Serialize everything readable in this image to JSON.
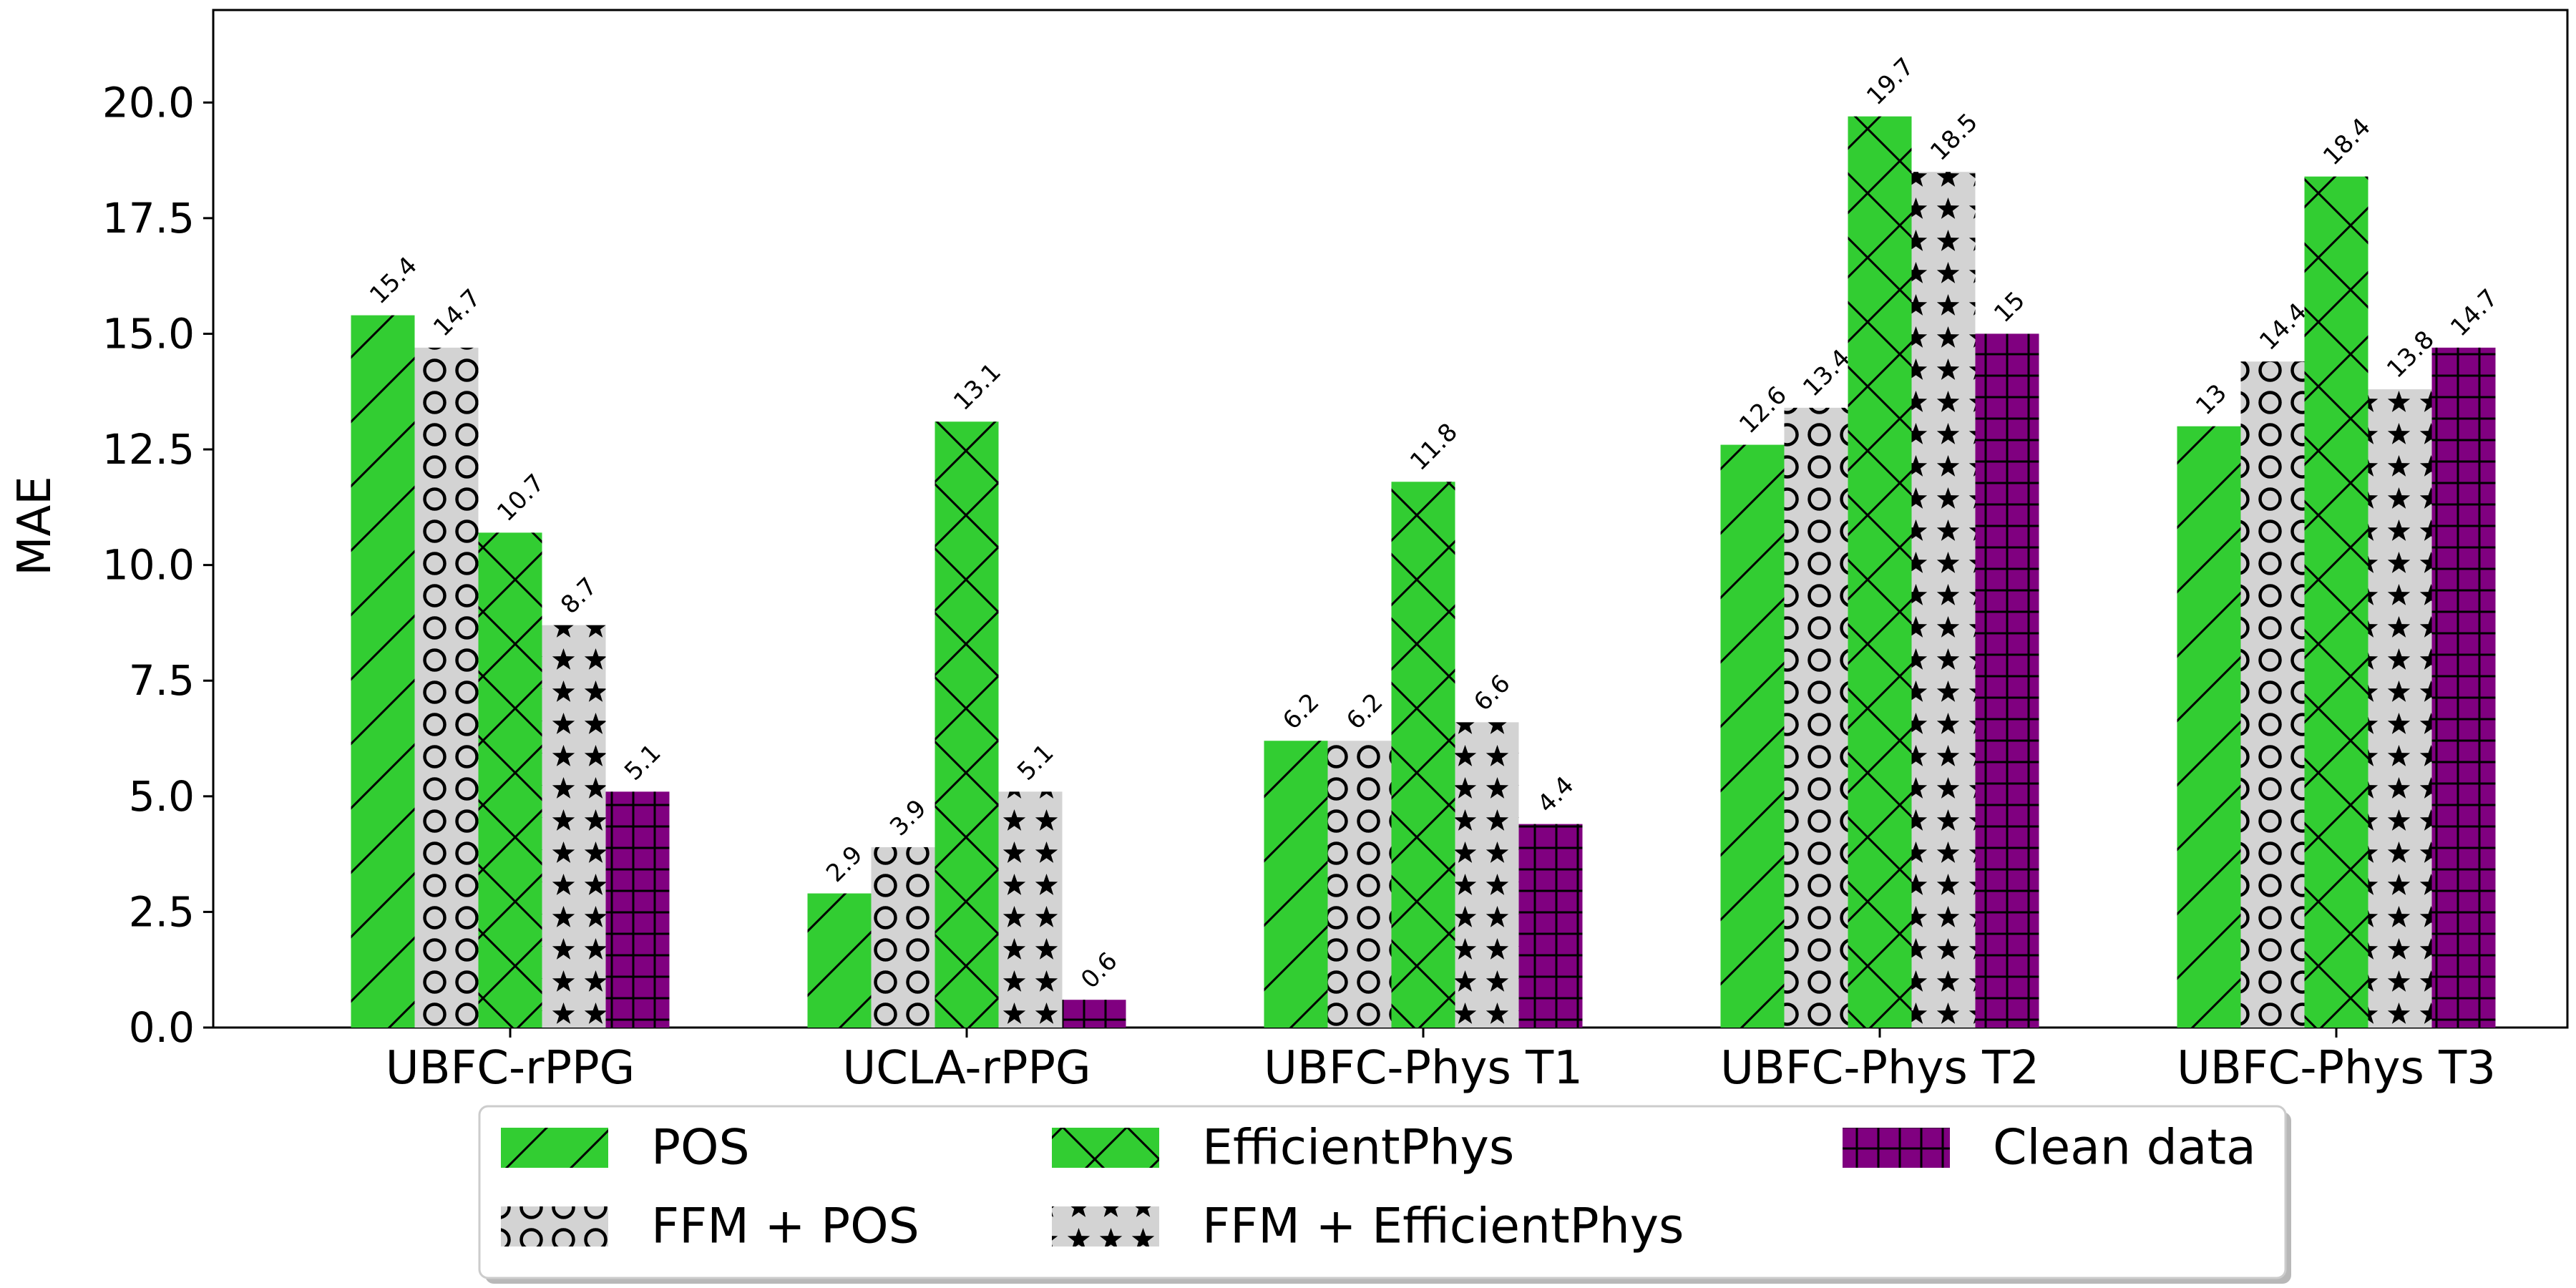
{
  "chart_data": {
    "type": "bar",
    "ylabel": "MAE",
    "xlabel": "",
    "ylim": [
      0,
      22
    ],
    "yticks": [
      "0.0",
      "2.5",
      "5.0",
      "7.5",
      "10.0",
      "12.5",
      "15.0",
      "17.5",
      "20.0"
    ],
    "categories": [
      "UBFC-rPPG",
      "UCLA-rPPG",
      "UBFC-Phys T1",
      "UBFC-Phys T2",
      "UBFC-Phys T3"
    ],
    "legend_position": "bottom-center",
    "series": [
      {
        "name": "POS",
        "color": "#32cd32",
        "hatch": "diagonal",
        "values": [
          15.4,
          2.9,
          6.2,
          12.6,
          13
        ],
        "labels": [
          "15.4",
          "2.9",
          "6.2",
          "12.6",
          "13"
        ]
      },
      {
        "name": "FFM + POS",
        "color": "#d3d3d3",
        "hatch": "circles",
        "values": [
          14.7,
          3.9,
          6.2,
          13.4,
          14.4
        ],
        "labels": [
          "14.7",
          "3.9",
          "6.2",
          "13.4",
          "14.4"
        ]
      },
      {
        "name": "EfficientPhys",
        "color": "#32cd32",
        "hatch": "crosshatch",
        "values": [
          10.7,
          13.1,
          11.8,
          19.7,
          18.4
        ],
        "labels": [
          "10.7",
          "13.1",
          "11.8",
          "19.7",
          "18.4"
        ]
      },
      {
        "name": "FFM + EfficientPhys",
        "color": "#d3d3d3",
        "hatch": "stars",
        "values": [
          8.7,
          5.1,
          6.6,
          18.5,
          13.8
        ],
        "labels": [
          "8.7",
          "5.1",
          "6.6",
          "18.5",
          "13.8"
        ]
      },
      {
        "name": "Clean data",
        "color": "#800080",
        "hatch": "grid",
        "values": [
          5.1,
          0.6,
          4.4,
          15,
          14.7
        ],
        "labels": [
          "5.1",
          "0.6",
          "4.4",
          "15",
          "14.7"
        ]
      }
    ]
  }
}
